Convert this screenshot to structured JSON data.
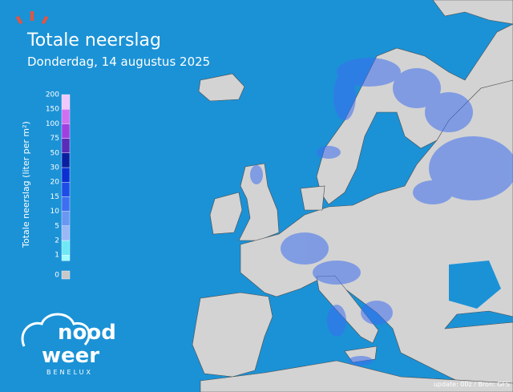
{
  "header": {
    "title": "Totale neerslag",
    "subtitle": "Donderdag, 14 augustus 2025"
  },
  "legend": {
    "title": "Totale neerslag (liter per m²)",
    "ticks": [
      0,
      1,
      2,
      5,
      10,
      15,
      20,
      30,
      50,
      75,
      100,
      150,
      200
    ],
    "zero_color": "#c8c8c8",
    "colors": [
      "#9ffcff",
      "#6fe8f5",
      "#9ab8f5",
      "#6b96f2",
      "#3d6ff0",
      "#1f4be6",
      "#0b2fd0",
      "#0a1fa0",
      "#5a2ab8",
      "#a040e0",
      "#d070f0",
      "#f0c8fa"
    ]
  },
  "logo": {
    "line1": "nood",
    "line2": "weer",
    "line3": "BENELUX"
  },
  "footer": {
    "source": "update: 00z / Bron: GFS"
  }
}
